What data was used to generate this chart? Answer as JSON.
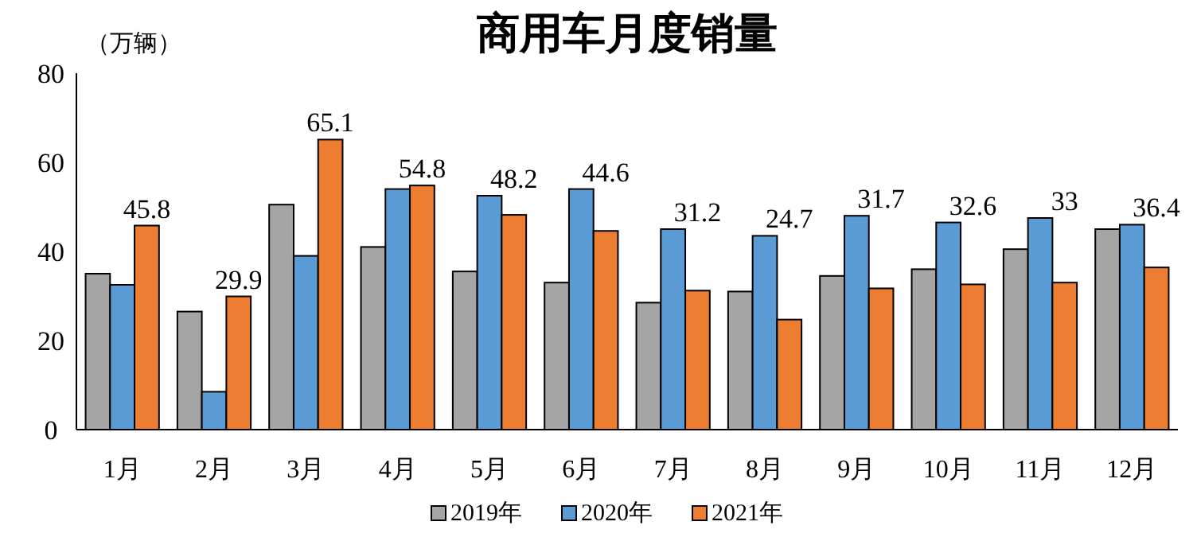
{
  "chart_data": {
    "type": "bar",
    "title": "商用车月度销量",
    "ylabel": "（万辆）",
    "categories": [
      "1月",
      "2月",
      "3月",
      "4月",
      "5月",
      "6月",
      "7月",
      "8月",
      "9月",
      "10月",
      "11月",
      "12月"
    ],
    "series": [
      {
        "name": "2019年",
        "color": "#a5a5a5",
        "values": [
          35,
          26.5,
          50.5,
          41,
          35.5,
          33,
          28.5,
          31,
          34.5,
          36,
          40.5,
          45
        ]
      },
      {
        "name": "2020年",
        "color": "#5b9bd5",
        "values": [
          32.5,
          8.5,
          39,
          54,
          52.5,
          54,
          45,
          43.5,
          48,
          46.5,
          47.5,
          46
        ]
      },
      {
        "name": "2021年",
        "color": "#ed7d31",
        "values": [
          45.8,
          29.9,
          65.1,
          54.8,
          48.2,
          44.6,
          31.2,
          24.7,
          31.7,
          32.6,
          33,
          36.4
        ],
        "value_labels": [
          "45.8",
          "29.9",
          "65.1",
          "54.8",
          "48.2",
          "44.6",
          "31.2",
          "24.7",
          "31.7",
          "32.6",
          "33",
          "36.4"
        ]
      }
    ],
    "ylim": [
      0,
      80
    ],
    "yticks": [
      0,
      20,
      40,
      60,
      80
    ],
    "grid": false,
    "legend": "bottom"
  }
}
